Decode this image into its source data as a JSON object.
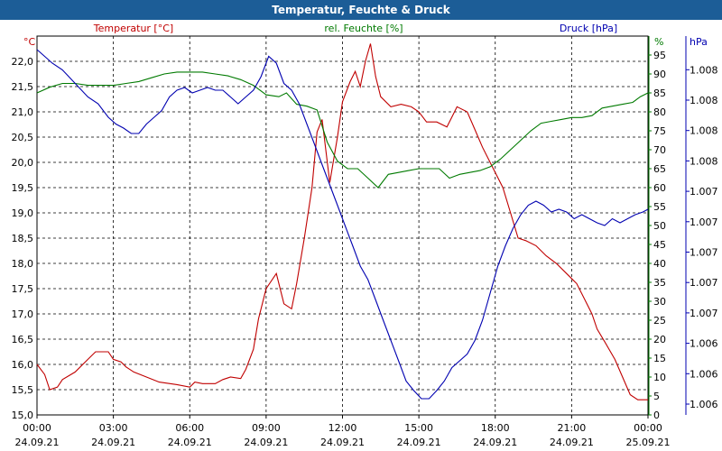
{
  "header": {
    "title": "Temperatur, Feuchte & Druck"
  },
  "colors": {
    "temperature": "#c00000",
    "humidity": "#007a00",
    "pressure": "#0000b0",
    "title_bg": "#1c5d97"
  },
  "chart_data": {
    "type": "line",
    "title": "Temperatur, Feuchte & Druck",
    "x_ticks": [
      {
        "t": 0,
        "time": "00:00",
        "date": "24.09.21"
      },
      {
        "t": 3,
        "time": "03:00",
        "date": "24.09.21"
      },
      {
        "t": 6,
        "time": "06:00",
        "date": "24.09.21"
      },
      {
        "t": 9,
        "time": "09:00",
        "date": "24.09.21"
      },
      {
        "t": 12,
        "time": "12:00",
        "date": "24.09.21"
      },
      {
        "t": 15,
        "time": "15:00",
        "date": "24.09.21"
      },
      {
        "t": 18,
        "time": "18:00",
        "date": "24.09.21"
      },
      {
        "t": 21,
        "time": "21:00",
        "date": "24.09.21"
      },
      {
        "t": 24,
        "time": "00:00",
        "date": "25.09.21"
      }
    ],
    "xlim": [
      0,
      24
    ],
    "axes": {
      "temperature": {
        "label": "Temperatur [°C]",
        "unit": "°C",
        "ylim": [
          15.0,
          22.5
        ],
        "ticks": [
          "15,0",
          "15,5",
          "16,0",
          "16,5",
          "17,0",
          "17,5",
          "18,0",
          "18,5",
          "19,0",
          "19,5",
          "20,0",
          "20,5",
          "21,0",
          "21,5",
          "22,0"
        ]
      },
      "humidity": {
        "label": "rel. Feuchte [%]",
        "unit": "%",
        "ylim": [
          0,
          100
        ],
        "ticks": [
          "0",
          "5",
          "10",
          "15",
          "20",
          "25",
          "30",
          "35",
          "40",
          "45",
          "50",
          "55",
          "60",
          "65",
          "70",
          "75",
          "80",
          "85",
          "90",
          "95"
        ]
      },
      "pressure": {
        "label": "Druck [hPa]",
        "unit": "hPa",
        "ylim": [
          1005.6,
          1008.4
        ],
        "ticks": [
          "1.006",
          "1.006",
          "1.006",
          "1.007",
          "1.007",
          "1.007",
          "1.007",
          "1.007",
          "1.008",
          "1.008",
          "1.008",
          "1.008"
        ]
      }
    },
    "series": [
      {
        "name": "Temperatur [°C]",
        "axis": "temperature",
        "x": [
          0,
          0.3,
          0.5,
          0.8,
          1.0,
          1.5,
          2.0,
          2.3,
          2.8,
          3.0,
          3.3,
          3.5,
          3.8,
          4.3,
          4.8,
          5.5,
          6.0,
          6.2,
          6.5,
          7.0,
          7.3,
          7.6,
          8.0,
          8.2,
          8.5,
          8.7,
          9.0,
          9.4,
          9.7,
          10.0,
          10.2,
          10.5,
          10.8,
          11.0,
          11.2,
          11.5,
          11.8,
          12.0,
          12.3,
          12.5,
          12.7,
          12.9,
          13.1,
          13.3,
          13.5,
          13.9,
          14.3,
          14.7,
          15.0,
          15.3,
          15.7,
          16.1,
          16.5,
          16.9,
          17.2,
          17.5,
          17.9,
          18.3,
          18.6,
          18.9,
          19.2,
          19.6,
          20.0,
          20.4,
          20.8,
          21.2,
          21.5,
          21.8,
          22.0,
          22.3,
          22.7,
          23.0,
          23.3,
          23.6,
          24.0
        ],
        "values": [
          16.0,
          15.8,
          15.5,
          15.55,
          15.7,
          15.85,
          16.1,
          16.25,
          16.25,
          16.1,
          16.05,
          15.95,
          15.85,
          15.75,
          15.65,
          15.6,
          15.55,
          15.65,
          15.62,
          15.62,
          15.7,
          15.75,
          15.72,
          15.9,
          16.3,
          16.9,
          17.5,
          17.8,
          17.2,
          17.1,
          17.6,
          18.5,
          19.5,
          20.6,
          20.85,
          19.6,
          20.5,
          21.2,
          21.6,
          21.8,
          21.5,
          22.0,
          22.35,
          21.7,
          21.3,
          21.1,
          21.15,
          21.1,
          21.0,
          20.8,
          20.8,
          20.7,
          21.1,
          21.0,
          20.65,
          20.3,
          19.9,
          19.5,
          19.0,
          18.5,
          18.45,
          18.35,
          18.15,
          18.0,
          17.8,
          17.6,
          17.3,
          17.0,
          16.7,
          16.45,
          16.1,
          15.75,
          15.4,
          15.3,
          15.3
        ]
      },
      {
        "name": "rel. Feuchte [%]",
        "axis": "humidity",
        "x": [
          0,
          0.5,
          1.0,
          1.5,
          2.0,
          2.5,
          3.0,
          3.5,
          4.0,
          4.5,
          5.0,
          5.5,
          6.0,
          6.5,
          7.0,
          7.5,
          8.0,
          8.5,
          9.0,
          9.5,
          9.8,
          10.2,
          10.6,
          11.0,
          11.4,
          11.8,
          12.2,
          12.6,
          13.0,
          13.4,
          13.8,
          14.2,
          14.6,
          15.0,
          15.4,
          15.8,
          16.2,
          16.6,
          17.0,
          17.4,
          17.8,
          18.2,
          18.6,
          19.0,
          19.4,
          19.8,
          20.2,
          20.6,
          21.0,
          21.4,
          21.8,
          22.2,
          22.6,
          23.0,
          23.4,
          23.7,
          24.0
        ],
        "values": [
          85,
          86.5,
          87.5,
          87.5,
          87,
          87,
          87,
          87.5,
          88,
          89,
          90,
          90.5,
          90.5,
          90.5,
          90,
          89.5,
          88.5,
          87,
          84.5,
          84,
          85,
          82,
          81.5,
          80.5,
          72,
          67,
          65,
          65,
          62.5,
          60,
          63.5,
          64,
          64.5,
          65,
          65,
          65,
          62.5,
          63.5,
          64,
          64.5,
          65.5,
          67.5,
          70,
          72.5,
          75,
          77,
          77.5,
          78,
          78.5,
          78.5,
          79,
          81,
          81.5,
          82,
          82.5,
          84,
          85
        ]
      },
      {
        "name": "Druck [hPa]",
        "axis": "pressure",
        "x": [
          0,
          0.3,
          0.6,
          1.0,
          1.5,
          2.0,
          2.4,
          2.8,
          3.1,
          3.4,
          3.7,
          4.0,
          4.3,
          4.6,
          4.9,
          5.2,
          5.5,
          5.8,
          6.1,
          6.4,
          6.7,
          7.0,
          7.3,
          7.6,
          7.9,
          8.2,
          8.5,
          8.8,
          9.1,
          9.4,
          9.7,
          10.0,
          10.3,
          10.6,
          10.9,
          11.2,
          11.5,
          11.8,
          12.1,
          12.4,
          12.7,
          13.0,
          13.3,
          13.6,
          13.9,
          14.2,
          14.5,
          14.8,
          15.1,
          15.4,
          15.7,
          16.0,
          16.3,
          16.6,
          16.9,
          17.2,
          17.5,
          17.8,
          18.1,
          18.4,
          18.7,
          19.0,
          19.3,
          19.6,
          19.9,
          20.2,
          20.5,
          20.8,
          21.1,
          21.4,
          21.7,
          22.0,
          22.3,
          22.6,
          22.9,
          23.2,
          23.5,
          23.8,
          24.0
        ],
        "values": [
          1008.3,
          1008.25,
          1008.2,
          1008.15,
          1008.05,
          1007.95,
          1007.9,
          1007.8,
          1007.75,
          1007.72,
          1007.68,
          1007.68,
          1007.75,
          1007.8,
          1007.85,
          1007.95,
          1008.0,
          1008.02,
          1007.98,
          1008.0,
          1008.02,
          1008.0,
          1008.0,
          1007.95,
          1007.9,
          1007.95,
          1008.0,
          1008.1,
          1008.25,
          1008.2,
          1008.05,
          1008.0,
          1007.9,
          1007.75,
          1007.6,
          1007.45,
          1007.3,
          1007.15,
          1007.0,
          1006.85,
          1006.7,
          1006.6,
          1006.45,
          1006.3,
          1006.15,
          1006.0,
          1005.85,
          1005.78,
          1005.72,
          1005.72,
          1005.78,
          1005.85,
          1005.95,
          1006.0,
          1006.05,
          1006.15,
          1006.3,
          1006.5,
          1006.7,
          1006.85,
          1006.98,
          1007.08,
          1007.15,
          1007.18,
          1007.15,
          1007.1,
          1007.12,
          1007.1,
          1007.05,
          1007.08,
          1007.05,
          1007.02,
          1007.0,
          1007.05,
          1007.02,
          1007.05,
          1007.08,
          1007.1,
          1007.12
        ]
      }
    ]
  }
}
